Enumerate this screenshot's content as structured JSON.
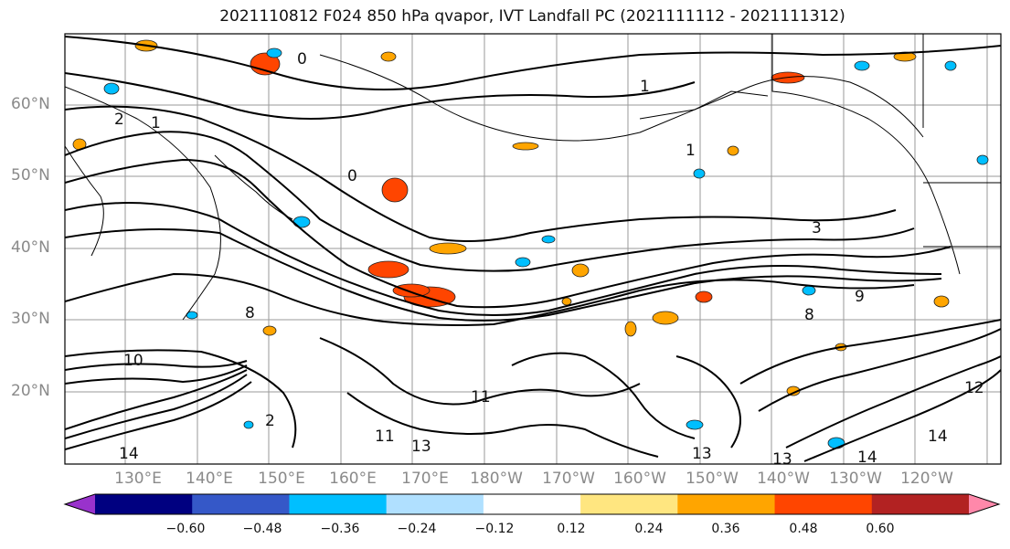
{
  "title": "2021110812 F024 850 hPa qvapor, IVT Landfall PC (2021111112 - 2021111312)",
  "lat_labels": [
    "60°N",
    "50°N",
    "40°N",
    "30°N",
    "20°N"
  ],
  "lon_labels": [
    "130°E",
    "140°E",
    "150°E",
    "160°E",
    "170°E",
    "180°W",
    "170°W",
    "160°W",
    "150°W",
    "140°W",
    "130°W",
    "120°W"
  ],
  "contour_labels": [
    "0",
    "1",
    "2",
    "1",
    "0",
    "1",
    "3",
    "8",
    "10",
    "8",
    "9",
    "12",
    "2",
    "11",
    "13",
    "14",
    "13",
    "13",
    "14",
    "14",
    "11"
  ],
  "colorbar": {
    "colors": [
      "#9932cc",
      "#000080",
      "#3558c8",
      "#00bfff",
      "#b0e0ff",
      "#ffffff",
      "#ffe680",
      "#ffa500",
      "#ff4500",
      "#b22222",
      "#ff88aa"
    ],
    "tick_labels": [
      "−0.60",
      "−0.48",
      "−0.36",
      "−0.24",
      "−0.12",
      "0.12",
      "0.24",
      "0.36",
      "0.48",
      "0.60"
    ]
  }
}
